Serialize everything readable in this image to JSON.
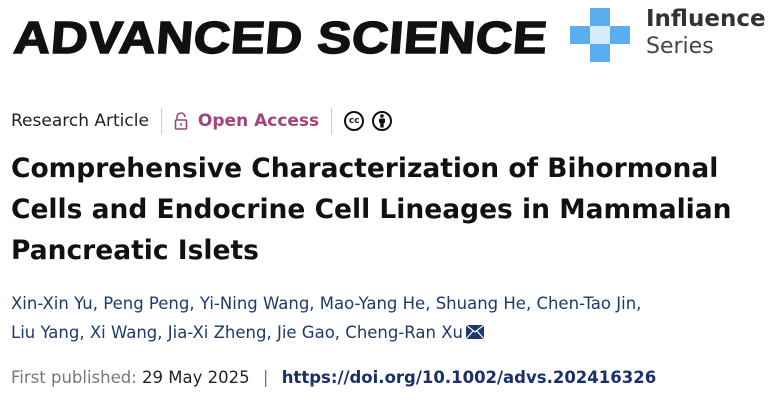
{
  "header": {
    "journal": "ADVANCED SCIENCE",
    "series_line1": "Influence",
    "series_line2": "Series"
  },
  "meta": {
    "article_type": "Research Article",
    "open_access": "Open Access",
    "license_icons": [
      "cc-icon",
      "attribution-icon"
    ],
    "cc_text": "cc"
  },
  "title": "Comprehensive Characterization of Bihormonal Cells and Endocrine Cell Lineages in Mammalian Pancreatic Islets",
  "authors": [
    "Xin-Xin Yu",
    "Peng Peng",
    "Yi-Ning Wang",
    "Mao-Yang He",
    "Shuang He",
    "Chen-Tao Jin",
    "Liu Yang",
    "Xi Wang",
    "Jia-Xi Zheng",
    "Jie Gao",
    "Cheng-Ran Xu"
  ],
  "publication": {
    "label": "First published:",
    "date": "29 May 2025",
    "separator": "|",
    "doi": "https://doi.org/10.1002/advs.202416326"
  },
  "colors": {
    "open_access": "#a3437a",
    "authors": "#1d3a6d",
    "logo_blue": "#5aaef0"
  }
}
